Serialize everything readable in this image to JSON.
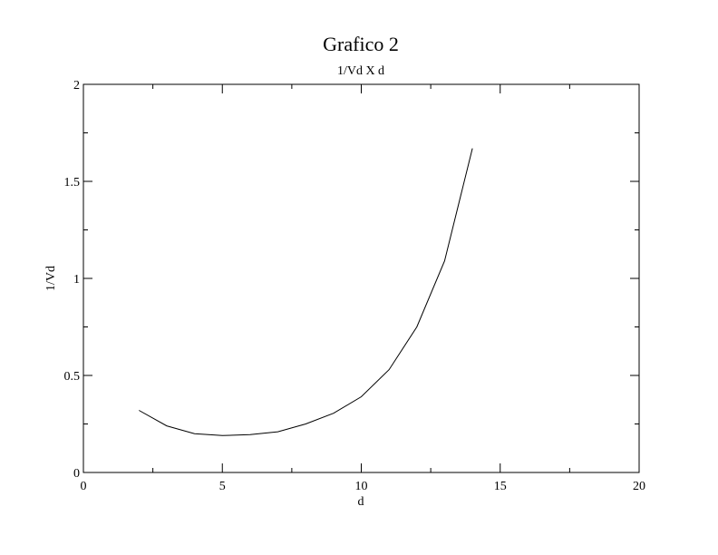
{
  "chart_data": {
    "type": "line",
    "title": "Grafico 2",
    "subtitle": "1/Vd X d",
    "xlabel": "d",
    "ylabel": "1/Vd",
    "xlim": [
      0,
      20
    ],
    "ylim": [
      0,
      2
    ],
    "x_ticks": [
      "0",
      "5",
      "10",
      "15",
      "20"
    ],
    "y_ticks": [
      "0",
      "0.5",
      "1",
      "1.5",
      "2"
    ],
    "grid": false,
    "line_color": "#000000",
    "x": [
      2,
      3,
      4,
      5,
      6,
      7,
      8,
      9,
      10,
      11,
      12,
      13,
      14
    ],
    "y": [
      0.32,
      0.24,
      0.2,
      0.19,
      0.195,
      0.21,
      0.25,
      0.305,
      0.39,
      0.53,
      0.75,
      1.09,
      1.67
    ]
  }
}
